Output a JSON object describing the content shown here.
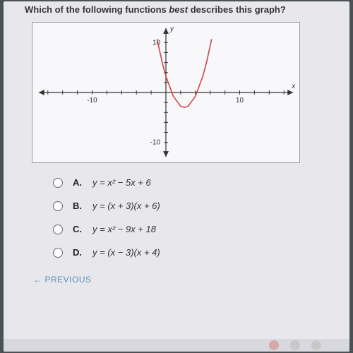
{
  "question": "Which of the following functions <em>best</em> describes this graph?",
  "graph": {
    "type": "parabola",
    "xlim": [
      -18,
      18
    ],
    "ylim": [
      -14,
      14
    ],
    "xtick_labels": [
      {
        "x": -10,
        "label": "-10"
      },
      {
        "x": 10,
        "label": "10"
      }
    ],
    "ytick_labels": [
      {
        "y": 10,
        "label": "10"
      },
      {
        "y": -10,
        "label": "-10"
      }
    ],
    "axis_label_x": "x",
    "axis_label_y": "y",
    "curve_color": "#c44",
    "axis_color": "#333",
    "tick_color": "#333",
    "grid_color": "none",
    "background": "#f8f8fa",
    "curve": {
      "vertex_x": 2.5,
      "vertex_y": -3,
      "a": 1,
      "x_samples": [
        -1.2,
        -0.5,
        0,
        1,
        2,
        2.5,
        3,
        4,
        5,
        5.5,
        6.2
      ]
    },
    "label_fontsize": 10
  },
  "answers": [
    {
      "letter": "A.",
      "equation": "y = x² − 5x + 6"
    },
    {
      "letter": "B.",
      "equation": "y = (x + 3)(x + 6)"
    },
    {
      "letter": "C.",
      "equation": "y = x² − 9x + 18"
    },
    {
      "letter": "D.",
      "equation": "y = (x − 3)(x + 4)"
    }
  ],
  "previous_label": "PREVIOUS",
  "bottom_dots": [
    "#d8a8a8",
    "#c8c8c8",
    "#c8c8c8"
  ]
}
